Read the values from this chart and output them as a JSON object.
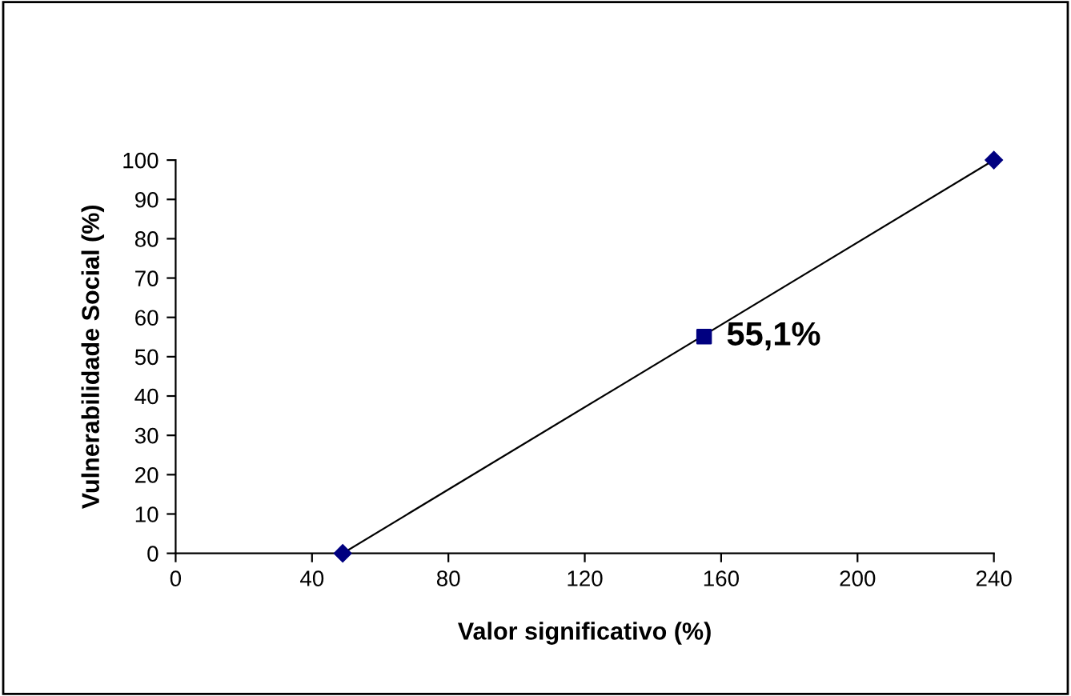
{
  "chart_data": {
    "type": "line",
    "xlabel": "Valor significativo (%)",
    "ylabel": "Vulnerabilidade Social (%)",
    "xlim": [
      0,
      240
    ],
    "xticks": [
      0,
      40,
      80,
      120,
      160,
      200,
      240
    ],
    "ylim": [
      0,
      100
    ],
    "yticks": [
      0,
      10,
      20,
      30,
      40,
      50,
      60,
      70,
      80,
      90,
      100
    ],
    "grid": false,
    "legend": false,
    "series": [
      {
        "color": "#000080",
        "x": [
          49,
          240
        ],
        "values": [
          0,
          100
        ],
        "marker": "diamond",
        "line_style": "solid"
      },
      {
        "type": "scatter",
        "color": "#000080",
        "x": [
          155
        ],
        "values": [
          55.1
        ],
        "marker": "square",
        "value_labels": [
          "55,1%"
        ]
      }
    ]
  }
}
